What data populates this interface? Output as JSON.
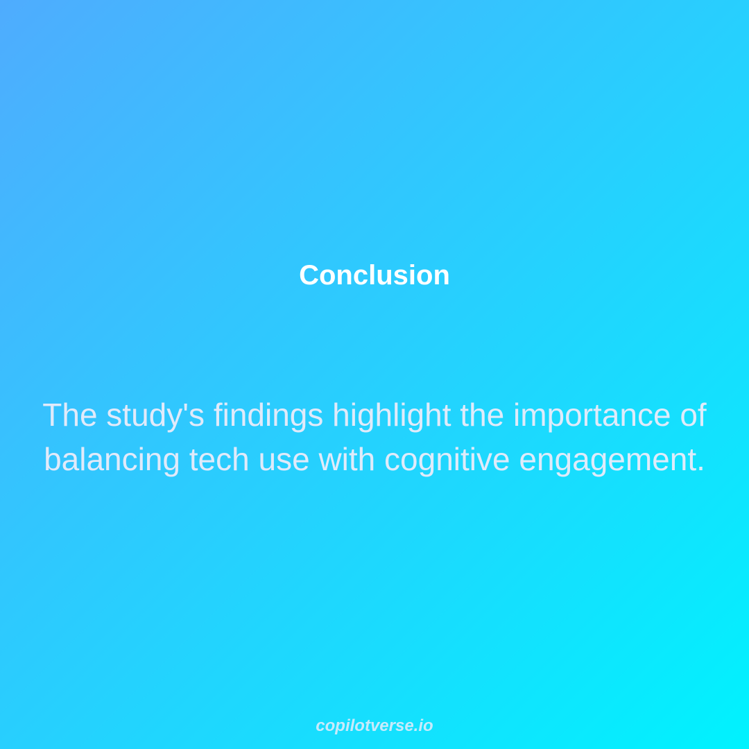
{
  "slide": {
    "title": "Conclusion",
    "body": "The study's findings highlight the importance of balancing tech use with cognitive engagement.",
    "footer": "copilotverse.io"
  },
  "colors": {
    "gradient_start": "#4facfe",
    "gradient_end": "#00f2fe",
    "title_color": "#ffffff"
  }
}
